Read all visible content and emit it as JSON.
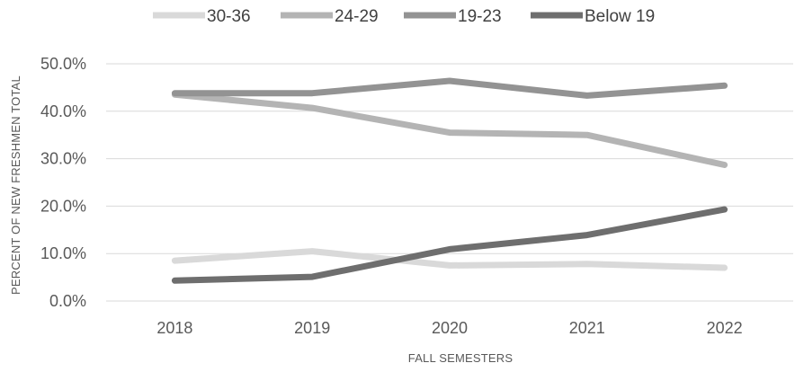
{
  "chart_data": {
    "type": "line",
    "title": "",
    "xlabel": "FALL SEMESTERS",
    "ylabel": "PERCENT OF NEW FRESHMEN TOTAL",
    "categories": [
      "2018",
      "2019",
      "2020",
      "2021",
      "2022"
    ],
    "ylim": [
      0,
      50
    ],
    "yticks": [
      {
        "value": 0,
        "label": "0.0%"
      },
      {
        "value": 10,
        "label": "10.0%"
      },
      {
        "value": 20,
        "label": "20.0%"
      },
      {
        "value": 30,
        "label": "30.0%"
      },
      {
        "value": 40,
        "label": "40.0%"
      },
      {
        "value": 50,
        "label": "50.0%"
      }
    ],
    "grid": true,
    "legend_position": "top",
    "series": [
      {
        "name": "30-36",
        "color": "#d9d9d9",
        "values": [
          8.5,
          10.5,
          7.5,
          7.8,
          7.0
        ]
      },
      {
        "name": "24-29",
        "color": "#b4b4b4",
        "values": [
          43.5,
          40.7,
          35.5,
          35.0,
          28.7
        ]
      },
      {
        "name": "19-23",
        "color": "#939393",
        "values": [
          43.8,
          43.8,
          46.4,
          43.3,
          45.4
        ]
      },
      {
        "name": "Below 19",
        "color": "#6e6e6e",
        "values": [
          4.3,
          5.1,
          10.9,
          13.9,
          19.3
        ]
      }
    ]
  }
}
